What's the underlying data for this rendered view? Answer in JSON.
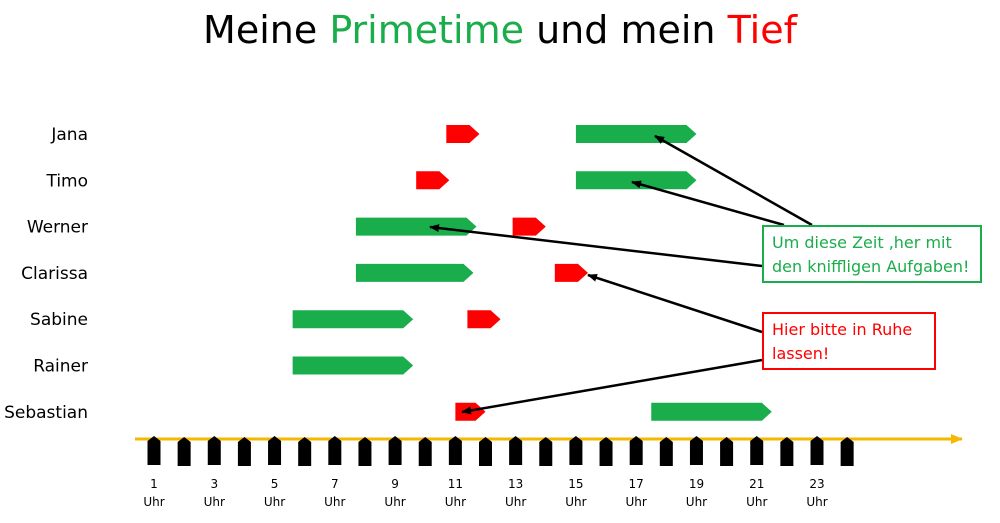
{
  "title": {
    "part1": "Meine",
    "part2": "Primetime",
    "part3": "und mein",
    "part4": "Tief"
  },
  "colors": {
    "prime": "#1aad4b",
    "low": "#ff0000",
    "axis": "#f5b800",
    "marker": "#000000"
  },
  "chart_data": {
    "type": "timeline",
    "axis": {
      "tick_hours": [
        1,
        3,
        5,
        7,
        9,
        11,
        13,
        15,
        17,
        19,
        21,
        23
      ],
      "tick_suffix": "Uhr",
      "range": [
        0.5,
        24
      ]
    },
    "persons": [
      {
        "name": "Jana",
        "prime": [
          15,
          19
        ],
        "low": [
          10.7,
          11.8
        ]
      },
      {
        "name": "Timo",
        "prime": [
          15,
          19
        ],
        "low": [
          9.7,
          10.8
        ]
      },
      {
        "name": "Werner",
        "prime": [
          7.7,
          11.7
        ],
        "low": [
          12.9,
          14
        ]
      },
      {
        "name": "Clarissa",
        "prime": [
          7.7,
          11.6
        ],
        "low": [
          14.3,
          15.4
        ]
      },
      {
        "name": "Sabine",
        "prime": [
          5.6,
          9.6
        ],
        "low": [
          11.4,
          12.5
        ]
      },
      {
        "name": "Rainer",
        "prime": [
          5.6,
          9.6
        ],
        "low": null
      },
      {
        "name": "Sebastian",
        "prime": [
          17.5,
          21.5
        ],
        "low": [
          11,
          12
        ]
      }
    ]
  },
  "notes": {
    "green_line1": "Um diese Zeit ,her mit",
    "green_line2": "den kniffligen Aufgaben!",
    "red_line1": "Hier bitte in Ruhe",
    "red_line2": "lassen!"
  }
}
